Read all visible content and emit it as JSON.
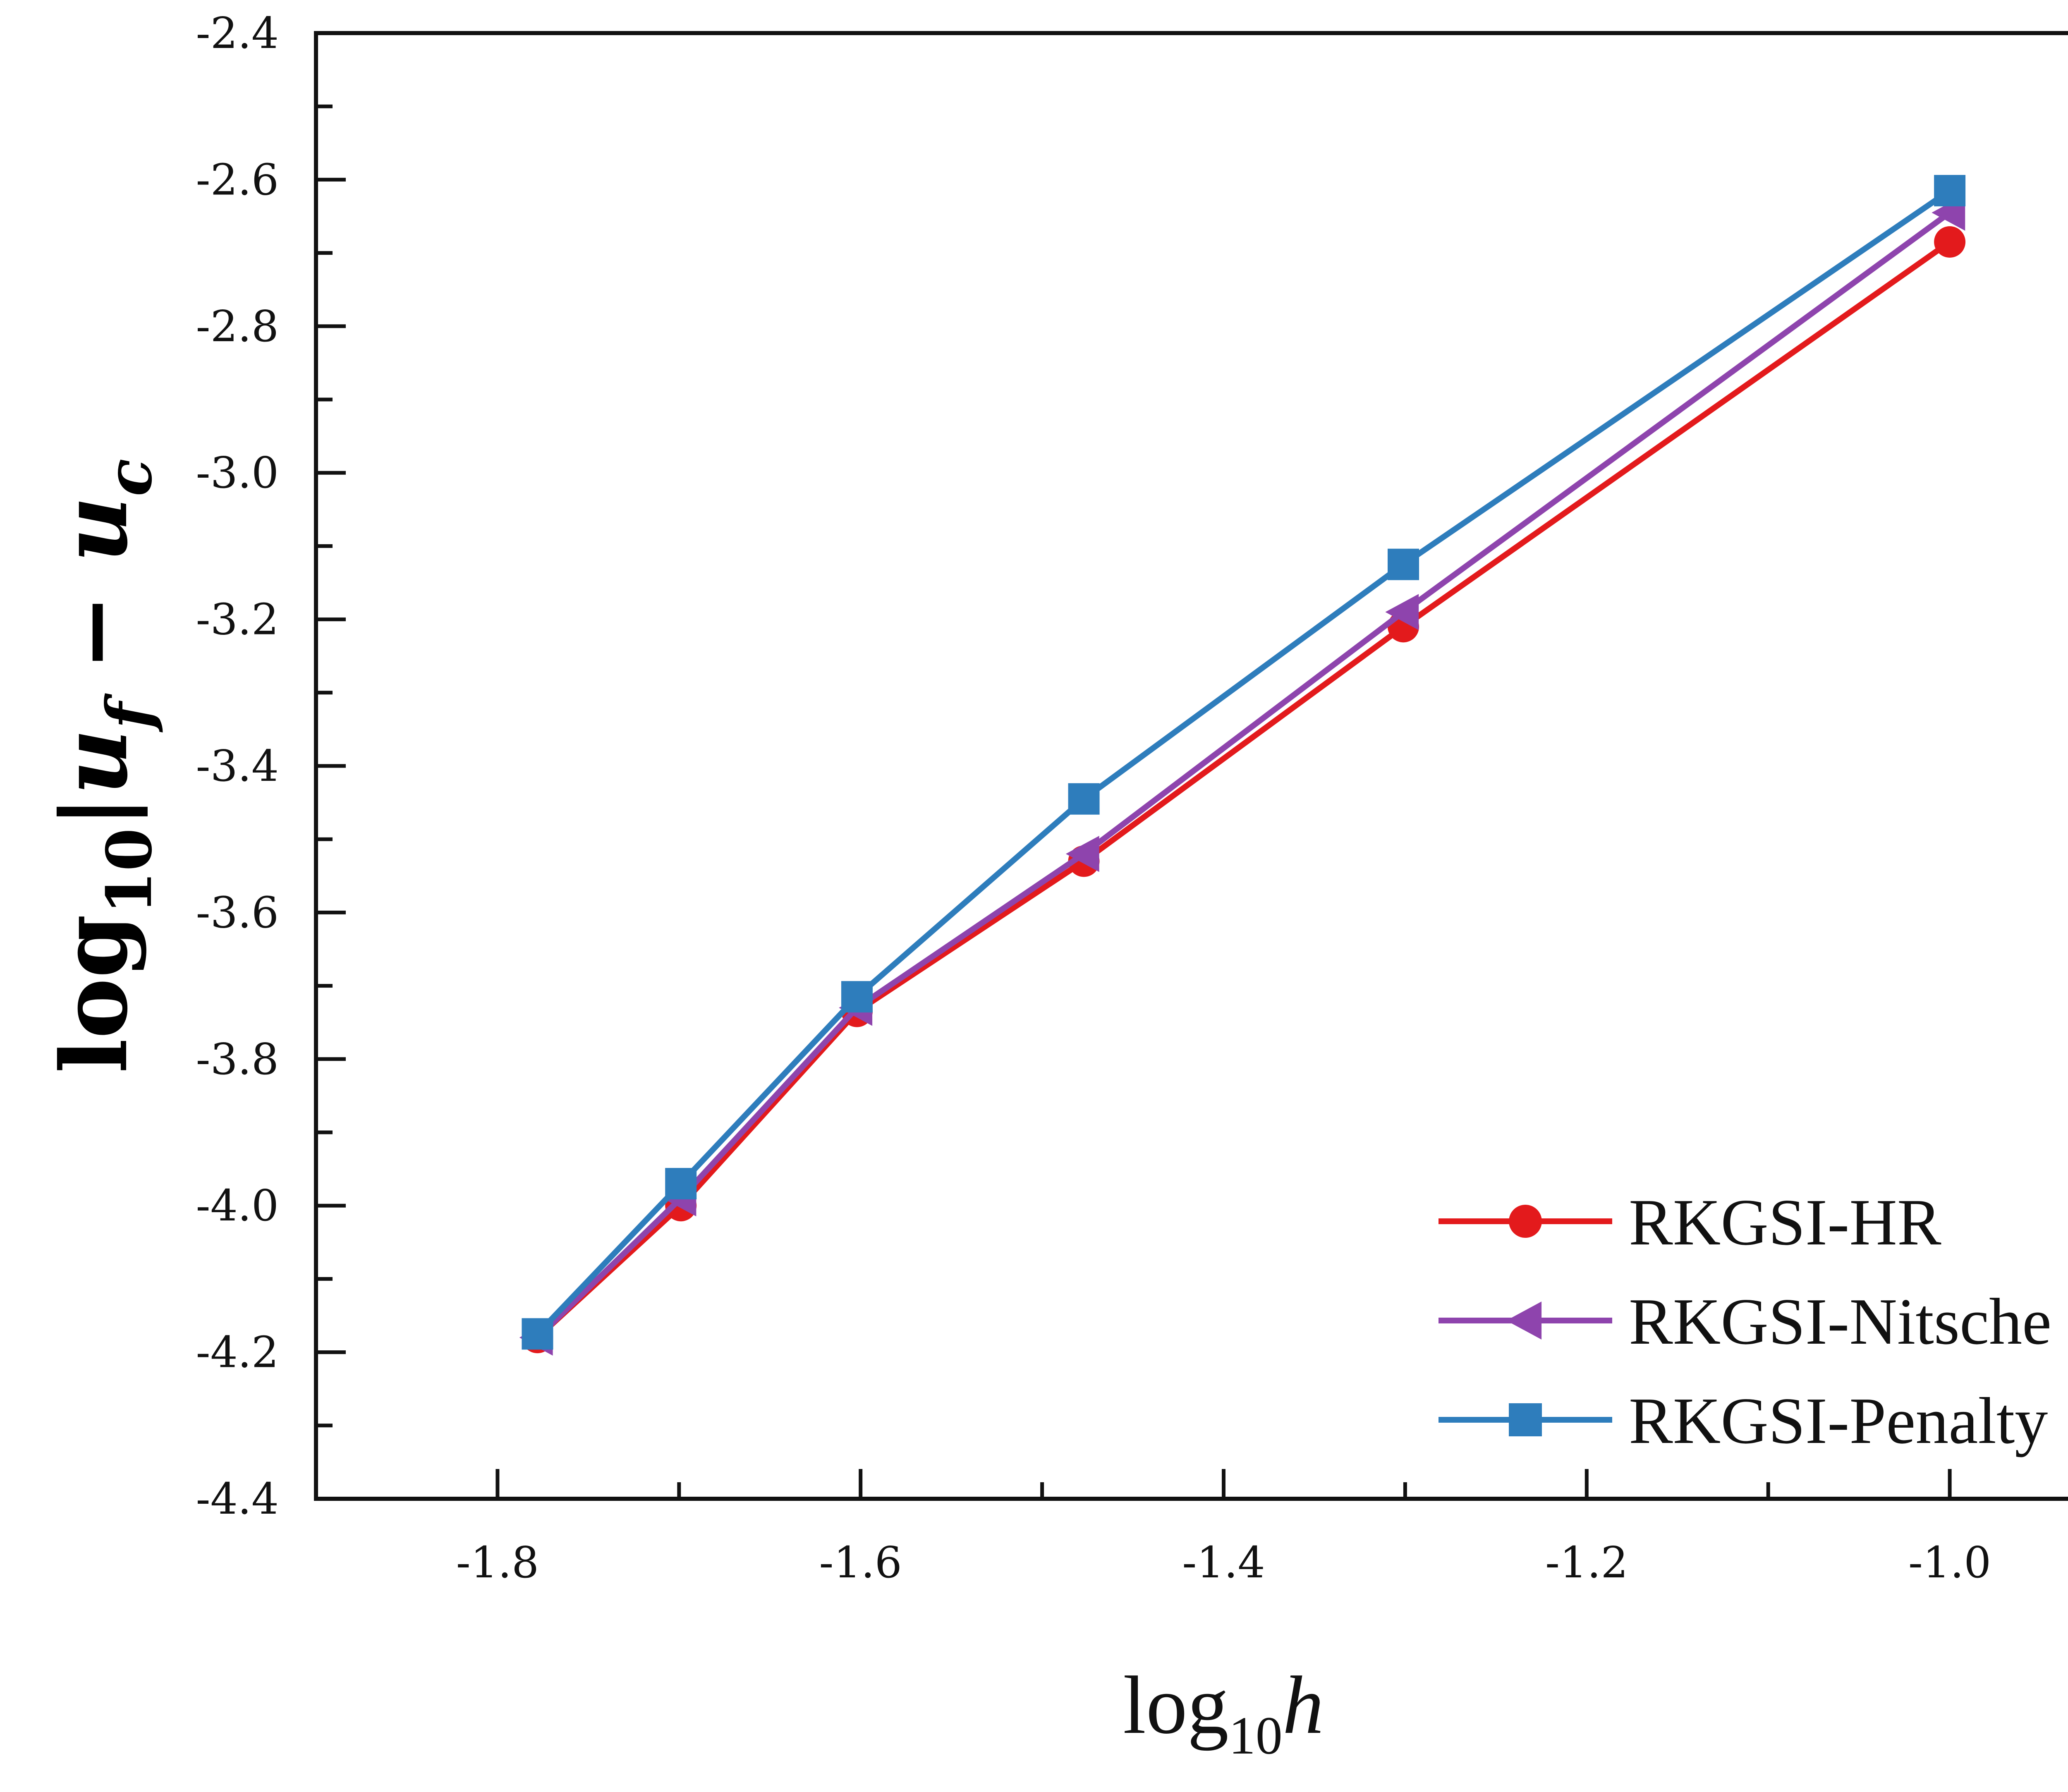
{
  "chart_data": {
    "type": "line",
    "xlabel": {
      "main": "log",
      "sub": "10",
      "var": "h"
    },
    "ylabel": {
      "main": "log",
      "sub": "10",
      "expr": "|u",
      "sub_f": "f",
      "minus": " − u",
      "sub_c": "c"
    },
    "xlim": [
      -1.9,
      -0.9
    ],
    "ylim": [
      -4.4,
      -2.4
    ],
    "xticks": [
      -1.8,
      -1.6,
      -1.4,
      -1.2,
      -1.0
    ],
    "xtick_labels": [
      "-1.8",
      "-1.6",
      "-1.4",
      "-1.2",
      "-1.0"
    ],
    "yticks": [
      -2.4,
      -2.6,
      -2.8,
      -3.0,
      -3.2,
      -3.4,
      -3.6,
      -3.8,
      -4.0,
      -4.2,
      -4.4
    ],
    "ytick_labels": [
      "-2.4",
      "-2.6",
      "-2.8",
      "-3.0",
      "-3.2",
      "-3.4",
      "-3.6",
      "-3.8",
      "-4.0",
      "-4.2",
      "-4.4"
    ],
    "grid": false,
    "legend_position": "bottom-right",
    "x": [
      -1.778,
      -1.699,
      -1.602,
      -1.477,
      -1.301,
      -1.0
    ],
    "series": [
      {
        "name": "RKGSI-HR",
        "color": "#e31a1c",
        "marker": "circle",
        "values": [
          -4.18,
          -4.0,
          -3.735,
          -3.53,
          -3.21,
          -2.685
        ]
      },
      {
        "name": "RKGSI-Nitsche",
        "color": "#8e44ad",
        "marker": "triangle-left",
        "values": [
          -4.18,
          -3.99,
          -3.73,
          -3.52,
          -3.19,
          -2.645
        ]
      },
      {
        "name": "RKGSI-Penalty",
        "color": "#2e7dbc",
        "marker": "square",
        "values": [
          -4.175,
          -3.97,
          -3.715,
          -3.445,
          -3.125,
          -2.615
        ]
      }
    ]
  }
}
